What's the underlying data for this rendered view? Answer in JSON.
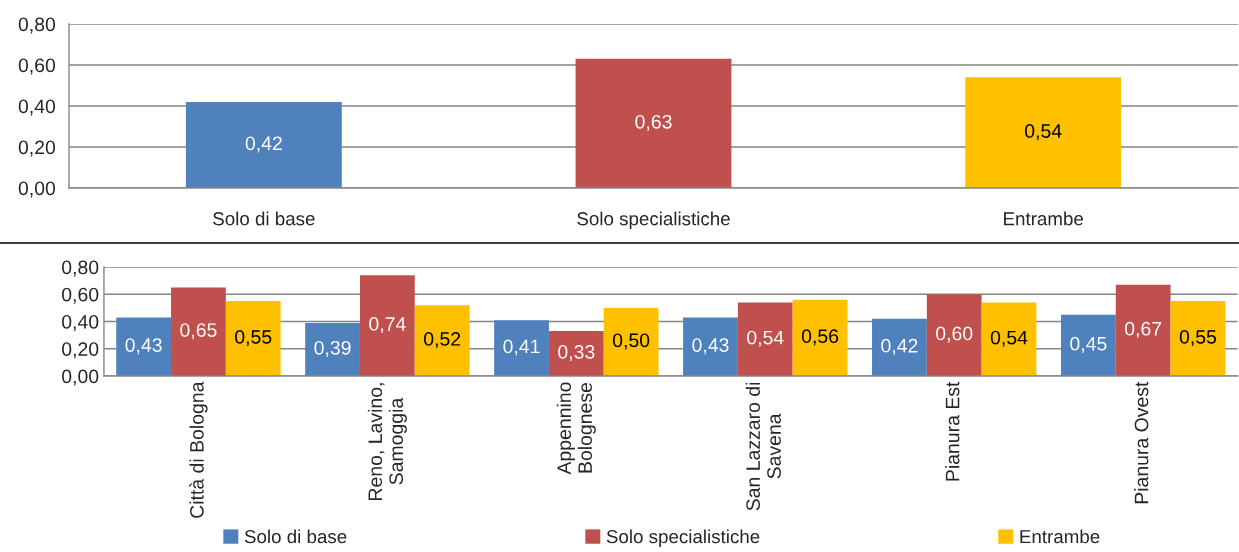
{
  "chart_data": [
    {
      "type": "bar",
      "categories": [
        "Solo di base",
        "Solo specialistiche",
        "Entrambe"
      ],
      "values": [
        0.42,
        0.63,
        0.54
      ],
      "colors": [
        "#4f81bd",
        "#c0504d",
        "#ffc000"
      ],
      "value_labels": [
        "0,42",
        "0,63",
        "0,54"
      ],
      "ylim": [
        0,
        0.8
      ],
      "yticks": [
        {
          "value": 0,
          "label": "0,00"
        },
        {
          "value": 0.2,
          "label": "0,20"
        },
        {
          "value": 0.4,
          "label": "0,40"
        },
        {
          "value": 0.6,
          "label": "0,60"
        },
        {
          "value": 0.8,
          "label": "0,80"
        }
      ],
      "grid": "y"
    },
    {
      "type": "bar",
      "categories": [
        "Città di Bologna",
        "Reno, Lavino, Samoggia",
        "Appennino Bolognese",
        "San Lazzaro di Savena",
        "Pianura Est",
        "Pianura Ovest"
      ],
      "series": [
        {
          "name": "Solo di base",
          "color": "#4f81bd",
          "values": [
            0.43,
            0.39,
            0.41,
            0.43,
            0.42,
            0.45
          ],
          "value_labels": [
            "0,43",
            "0,39",
            "0,41",
            "0,43",
            "0,42",
            "0,45"
          ]
        },
        {
          "name": "Solo specialistiche",
          "color": "#c0504d",
          "values": [
            0.65,
            0.74,
            0.33,
            0.54,
            0.6,
            0.67
          ],
          "value_labels": [
            "0,65",
            "0,74",
            "0,33",
            "0,54",
            "0,60",
            "0,67"
          ]
        },
        {
          "name": "Entrambe",
          "color": "#ffc000",
          "values": [
            0.55,
            0.52,
            0.5,
            0.56,
            0.54,
            0.55
          ],
          "value_labels": [
            "0,55",
            "0,52",
            "0,50",
            "0,56",
            "0,54",
            "0,55"
          ]
        }
      ],
      "ylim": [
        0,
        0.8
      ],
      "yticks": [
        {
          "value": 0,
          "label": "0,00"
        },
        {
          "value": 0.2,
          "label": "0,20"
        },
        {
          "value": 0.4,
          "label": "0,40"
        },
        {
          "value": 0.6,
          "label": "0,60"
        },
        {
          "value": 0.8,
          "label": "0,80"
        }
      ],
      "grid": "y",
      "legend": "bottom"
    }
  ]
}
